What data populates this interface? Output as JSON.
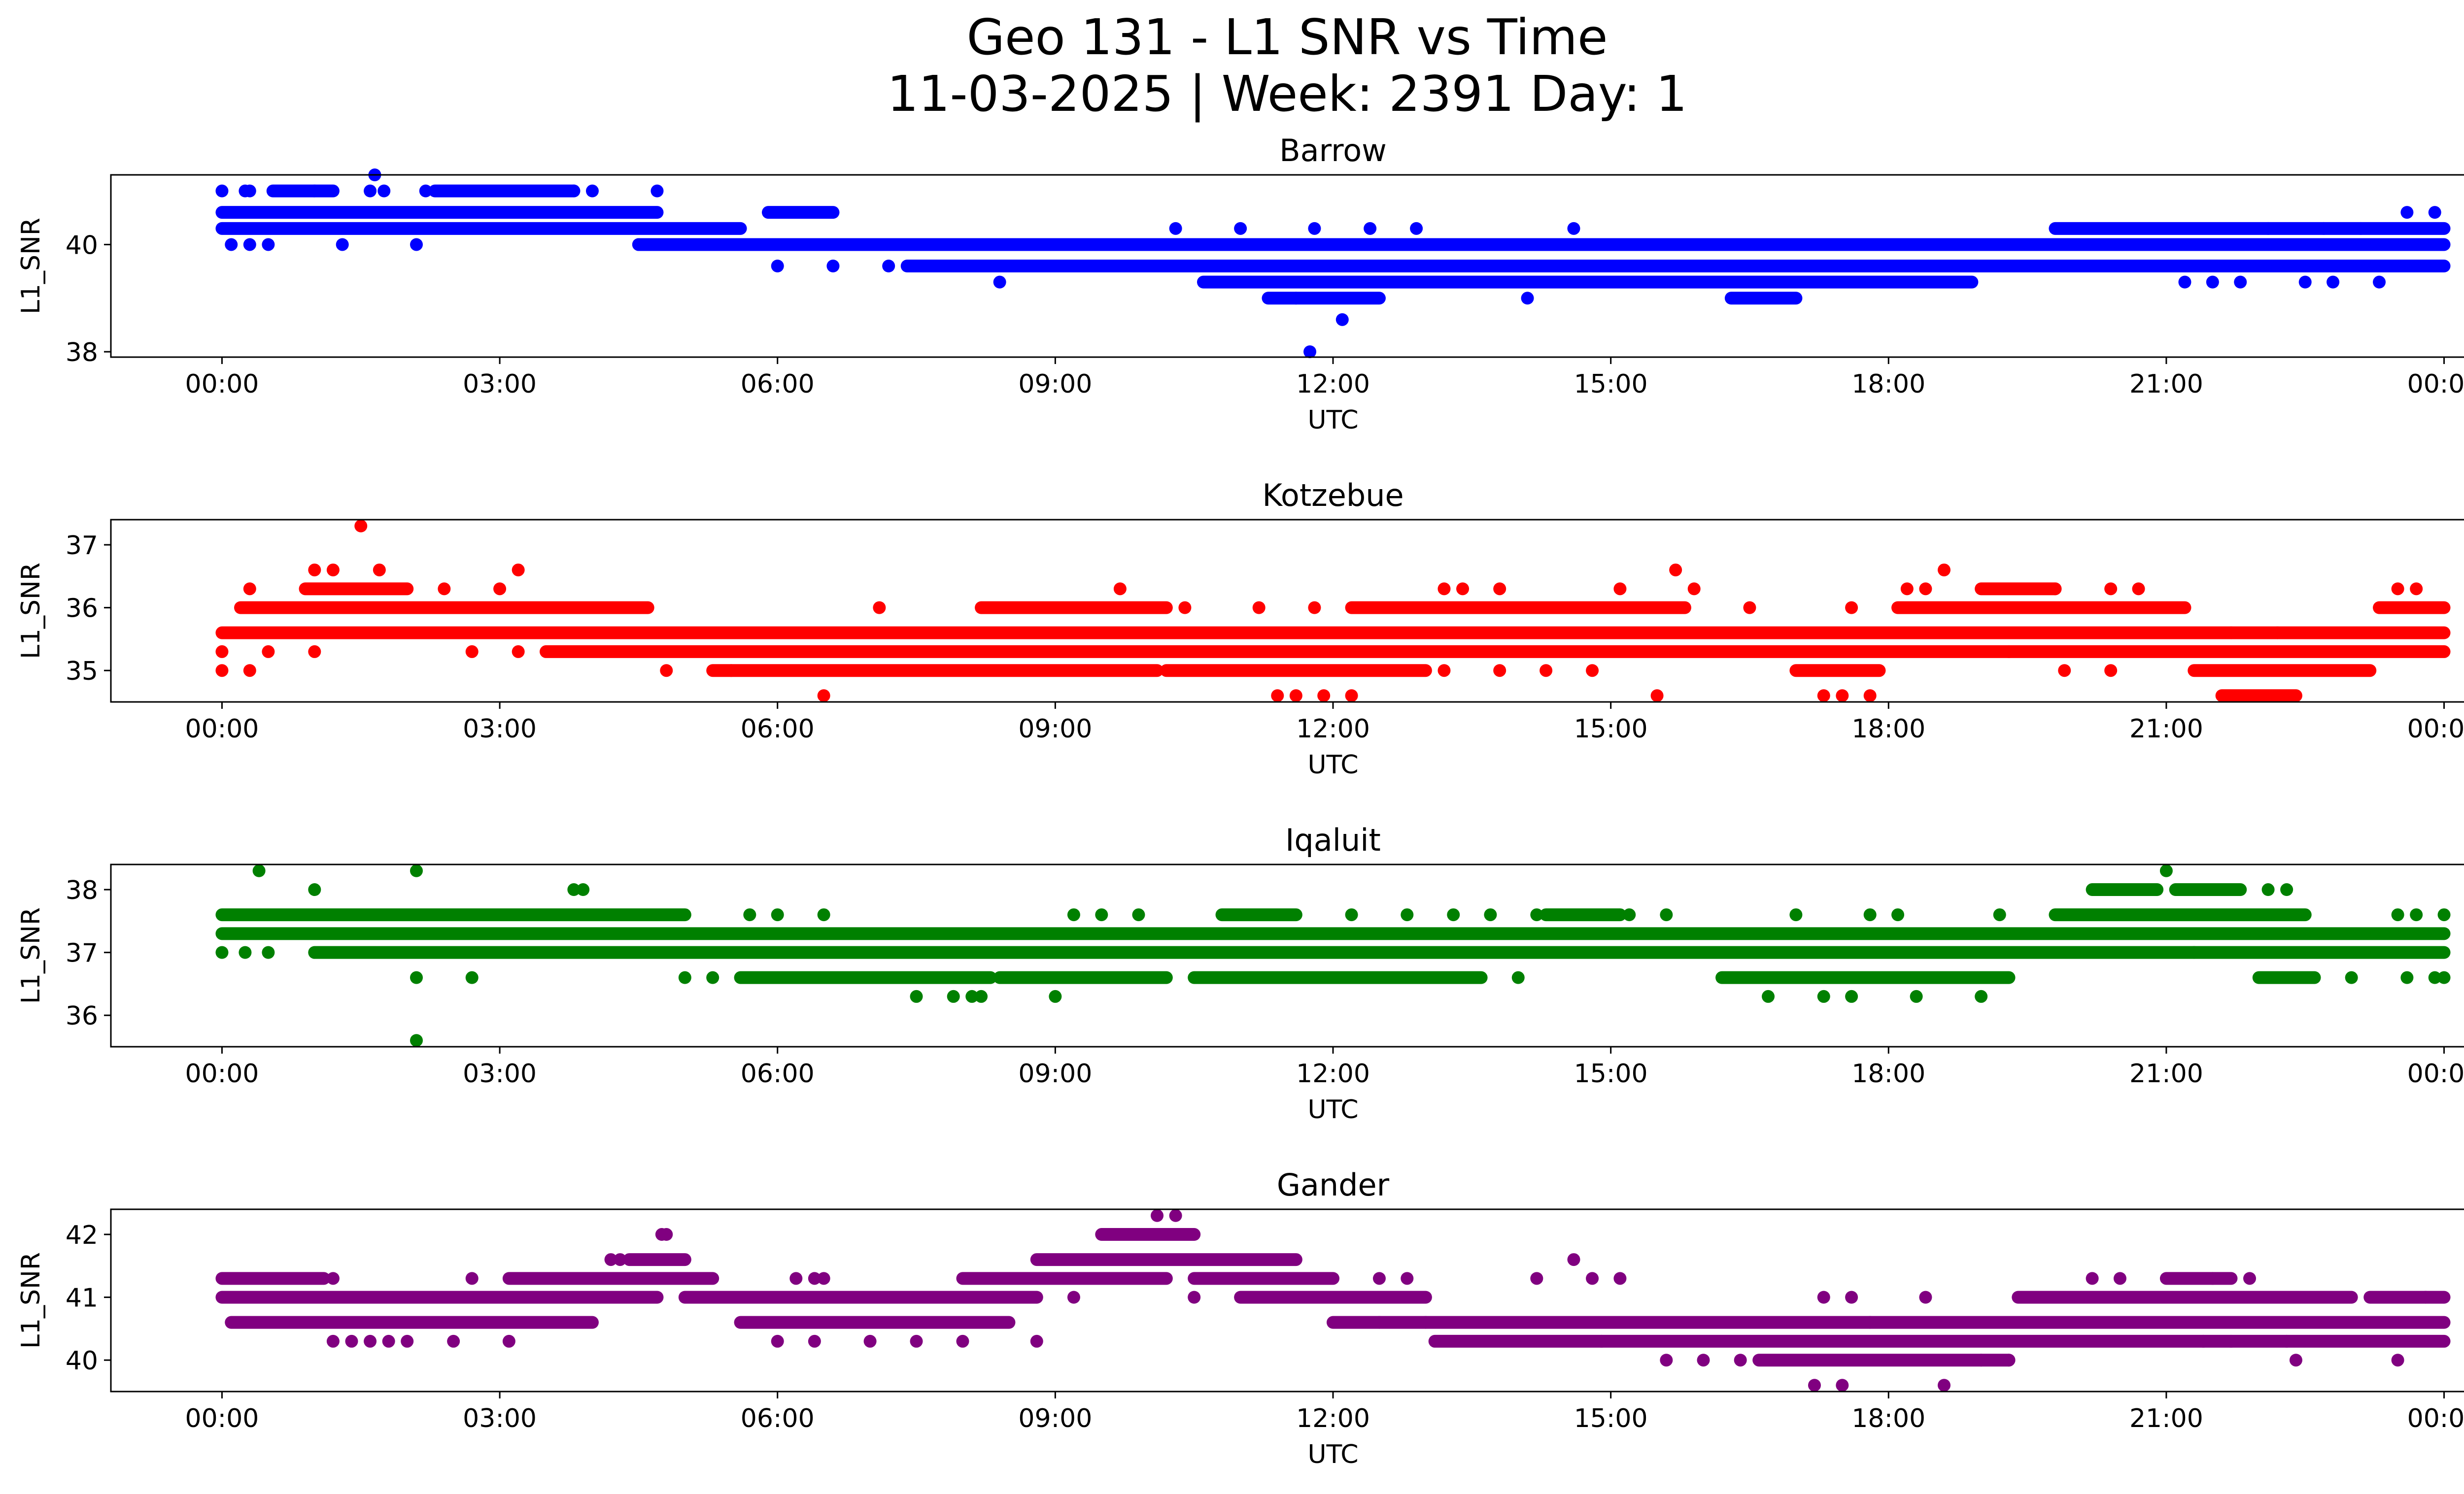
{
  "figure": {
    "title_line1": "Geo 131 - L1 SNR vs Time",
    "title_line2": "11-03-2025 | Week: 2391 Day: 1"
  },
  "chart_data": [
    {
      "type": "scatter",
      "title": "Barrow",
      "xlabel": "UTC",
      "ylabel": "L1_SNR",
      "color": "#0000ff",
      "xlim_hours": [
        -1.2,
        25.2
      ],
      "ylim": [
        37.9,
        41.3
      ],
      "xticks": [
        0,
        3,
        6,
        9,
        12,
        15,
        18,
        21,
        24
      ],
      "xtick_labels": [
        "00:00",
        "03:00",
        "06:00",
        "09:00",
        "12:00",
        "15:00",
        "18:00",
        "21:00",
        "00:00"
      ],
      "yticks": [
        38,
        40
      ],
      "ytick_labels": [
        "38",
        "40"
      ],
      "bands": [
        {
          "y": 40.6,
          "from": 0.0,
          "to": 4.7
        },
        {
          "y": 40.3,
          "from": 0.0,
          "to": 5.6
        },
        {
          "y": 40.0,
          "from": 4.5,
          "to": 24.0
        },
        {
          "y": 39.6,
          "from": 7.4,
          "to": 24.0
        },
        {
          "y": 39.3,
          "from": 10.6,
          "to": 18.9
        },
        {
          "y": 41.0,
          "from": 0.55,
          "to": 1.2
        },
        {
          "y": 41.0,
          "from": 2.3,
          "to": 3.8
        },
        {
          "y": 40.6,
          "from": 5.9,
          "to": 6.6
        },
        {
          "y": 40.3,
          "from": 19.8,
          "to": 24.0
        },
        {
          "y": 39.0,
          "from": 11.3,
          "to": 12.5
        },
        {
          "y": 39.0,
          "from": 16.3,
          "to": 17.0
        }
      ],
      "points": [
        [
          0.0,
          41.0
        ],
        [
          0.25,
          41.0
        ],
        [
          0.3,
          41.0
        ],
        [
          1.0,
          41.0
        ],
        [
          1.6,
          41.0
        ],
        [
          1.65,
          41.3
        ],
        [
          1.75,
          41.0
        ],
        [
          2.2,
          41.0
        ],
        [
          3.8,
          41.0
        ],
        [
          4.0,
          41.0
        ],
        [
          4.7,
          41.0
        ],
        [
          0.1,
          40.0
        ],
        [
          0.3,
          40.0
        ],
        [
          0.5,
          40.0
        ],
        [
          1.3,
          40.0
        ],
        [
          2.1,
          40.0
        ],
        [
          4.5,
          40.0
        ],
        [
          6.0,
          39.6
        ],
        [
          6.6,
          39.6
        ],
        [
          7.2,
          39.6
        ],
        [
          8.4,
          39.3
        ],
        [
          10.3,
          40.3
        ],
        [
          11.0,
          40.3
        ],
        [
          11.8,
          40.3
        ],
        [
          12.4,
          40.3
        ],
        [
          12.9,
          40.3
        ],
        [
          14.6,
          40.3
        ],
        [
          11.6,
          39.0
        ],
        [
          12.1,
          38.6
        ],
        [
          11.75,
          38.0
        ],
        [
          14.1,
          39.0
        ],
        [
          21.2,
          39.3
        ],
        [
          21.5,
          39.3
        ],
        [
          21.8,
          39.3
        ],
        [
          22.5,
          39.3
        ],
        [
          22.8,
          39.3
        ],
        [
          23.3,
          39.3
        ],
        [
          22.1,
          40.3
        ],
        [
          22.7,
          40.3
        ],
        [
          23.6,
          40.6
        ],
        [
          23.9,
          40.6
        ],
        [
          23.1,
          40.3
        ]
      ]
    },
    {
      "type": "scatter",
      "title": "Kotzebue",
      "xlabel": "UTC",
      "ylabel": "L1_SNR",
      "color": "#ff0000",
      "xlim_hours": [
        -1.2,
        25.2
      ],
      "ylim": [
        34.5,
        37.4
      ],
      "xticks": [
        0,
        3,
        6,
        9,
        12,
        15,
        18,
        21,
        24
      ],
      "xtick_labels": [
        "00:00",
        "03:00",
        "06:00",
        "09:00",
        "12:00",
        "15:00",
        "18:00",
        "21:00",
        "00:00"
      ],
      "yticks": [
        35,
        36,
        37
      ],
      "ytick_labels": [
        "35",
        "36",
        "37"
      ],
      "bands": [
        {
          "y": 35.6,
          "from": 0.0,
          "to": 24.0
        },
        {
          "y": 35.3,
          "from": 3.5,
          "to": 24.0
        },
        {
          "y": 36.0,
          "from": 0.2,
          "to": 4.6
        },
        {
          "y": 36.3,
          "from": 0.9,
          "to": 2.0
        },
        {
          "y": 35.0,
          "from": 5.3,
          "to": 10.1
        },
        {
          "y": 35.0,
          "from": 10.2,
          "to": 13.0
        },
        {
          "y": 36.0,
          "from": 8.2,
          "to": 10.2
        },
        {
          "y": 36.0,
          "from": 12.2,
          "to": 15.8
        },
        {
          "y": 36.0,
          "from": 18.1,
          "to": 21.2
        },
        {
          "y": 35.0,
          "from": 17.0,
          "to": 17.9
        },
        {
          "y": 34.6,
          "from": 21.6,
          "to": 22.4
        },
        {
          "y": 35.0,
          "from": 21.3,
          "to": 23.2
        },
        {
          "y": 36.0,
          "from": 23.3,
          "to": 24.0
        },
        {
          "y": 36.3,
          "from": 19.0,
          "to": 19.8
        }
      ],
      "points": [
        [
          0.0,
          35.3
        ],
        [
          0.0,
          35.0
        ],
        [
          0.3,
          35.0
        ],
        [
          0.5,
          35.3
        ],
        [
          1.0,
          35.3
        ],
        [
          0.3,
          36.3
        ],
        [
          1.0,
          36.6
        ],
        [
          1.2,
          36.6
        ],
        [
          1.5,
          37.3
        ],
        [
          1.7,
          36.6
        ],
        [
          3.2,
          36.6
        ],
        [
          2.4,
          36.3
        ],
        [
          3.0,
          36.3
        ],
        [
          2.7,
          35.3
        ],
        [
          3.2,
          35.3
        ],
        [
          4.8,
          35.0
        ],
        [
          5.5,
          35.0
        ],
        [
          6.5,
          34.6
        ],
        [
          7.1,
          36.0
        ],
        [
          9.7,
          36.3
        ],
        [
          10.4,
          36.0
        ],
        [
          11.2,
          36.0
        ],
        [
          11.6,
          34.6
        ],
        [
          11.9,
          34.6
        ],
        [
          12.2,
          34.6
        ],
        [
          11.4,
          34.6
        ],
        [
          11.8,
          36.0
        ],
        [
          13.2,
          36.3
        ],
        [
          13.4,
          36.3
        ],
        [
          13.8,
          36.3
        ],
        [
          13.2,
          35.0
        ],
        [
          13.8,
          35.0
        ],
        [
          14.3,
          35.0
        ],
        [
          14.8,
          35.0
        ],
        [
          15.1,
          36.3
        ],
        [
          15.5,
          34.6
        ],
        [
          15.7,
          36.6
        ],
        [
          15.9,
          36.3
        ],
        [
          16.5,
          36.0
        ],
        [
          17.3,
          34.6
        ],
        [
          17.5,
          34.6
        ],
        [
          17.8,
          34.6
        ],
        [
          17.6,
          36.0
        ],
        [
          18.2,
          36.3
        ],
        [
          18.6,
          36.6
        ],
        [
          18.4,
          36.3
        ],
        [
          19.3,
          35.3
        ],
        [
          19.9,
          35.0
        ],
        [
          20.4,
          35.0
        ],
        [
          19.8,
          36.3
        ],
        [
          20.4,
          36.3
        ],
        [
          20.7,
          36.3
        ],
        [
          21.7,
          35.6
        ],
        [
          22.2,
          35.6
        ],
        [
          23.5,
          36.3
        ],
        [
          23.7,
          36.3
        ]
      ]
    },
    {
      "type": "scatter",
      "title": "Iqaluit",
      "xlabel": "UTC",
      "ylabel": "L1_SNR",
      "color": "#008000",
      "xlim_hours": [
        -1.2,
        25.2
      ],
      "ylim": [
        35.5,
        38.4
      ],
      "xticks": [
        0,
        3,
        6,
        9,
        12,
        15,
        18,
        21,
        24
      ],
      "xtick_labels": [
        "00:00",
        "03:00",
        "06:00",
        "09:00",
        "12:00",
        "15:00",
        "18:00",
        "21:00",
        "00:00"
      ],
      "yticks": [
        36,
        37,
        38
      ],
      "ytick_labels": [
        "36",
        "37",
        "38"
      ],
      "bands": [
        {
          "y": 37.3,
          "from": 0.0,
          "to": 24.0
        },
        {
          "y": 37.6,
          "from": 0.0,
          "to": 5.0
        },
        {
          "y": 37.0,
          "from": 1.0,
          "to": 24.0
        },
        {
          "y": 36.6,
          "from": 5.6,
          "to": 8.3
        },
        {
          "y": 36.6,
          "from": 8.4,
          "to": 10.2
        },
        {
          "y": 36.6,
          "from": 10.5,
          "to": 13.6
        },
        {
          "y": 36.6,
          "from": 16.2,
          "to": 19.3
        },
        {
          "y": 37.6,
          "from": 10.8,
          "to": 11.6
        },
        {
          "y": 37.6,
          "from": 14.3,
          "to": 15.1
        },
        {
          "y": 37.6,
          "from": 19.8,
          "to": 22.5
        },
        {
          "y": 38.0,
          "from": 20.2,
          "to": 20.9
        },
        {
          "y": 38.0,
          "from": 21.1,
          "to": 21.8
        },
        {
          "y": 36.6,
          "from": 22.0,
          "to": 22.6
        }
      ],
      "points": [
        [
          0.0,
          37.0
        ],
        [
          0.25,
          37.0
        ],
        [
          0.5,
          37.0
        ],
        [
          0.4,
          38.3
        ],
        [
          1.0,
          38.0
        ],
        [
          2.1,
          38.3
        ],
        [
          2.1,
          36.6
        ],
        [
          2.1,
          35.6
        ],
        [
          2.7,
          36.6
        ],
        [
          3.8,
          38.0
        ],
        [
          3.9,
          38.0
        ],
        [
          5.0,
          36.6
        ],
        [
          5.3,
          36.6
        ],
        [
          5.7,
          37.6
        ],
        [
          6.0,
          37.6
        ],
        [
          6.5,
          37.6
        ],
        [
          7.5,
          36.3
        ],
        [
          7.9,
          36.3
        ],
        [
          8.1,
          36.3
        ],
        [
          8.2,
          36.3
        ],
        [
          9.0,
          36.3
        ],
        [
          9.2,
          37.6
        ],
        [
          9.5,
          37.6
        ],
        [
          9.9,
          37.6
        ],
        [
          12.2,
          37.6
        ],
        [
          12.8,
          37.6
        ],
        [
          13.3,
          37.6
        ],
        [
          13.7,
          37.6
        ],
        [
          14.2,
          37.6
        ],
        [
          14.0,
          36.6
        ],
        [
          15.2,
          37.6
        ],
        [
          15.6,
          37.6
        ],
        [
          16.7,
          36.3
        ],
        [
          17.0,
          37.6
        ],
        [
          17.3,
          36.3
        ],
        [
          17.6,
          36.3
        ],
        [
          17.8,
          37.6
        ],
        [
          18.1,
          37.6
        ],
        [
          18.3,
          36.3
        ],
        [
          19.0,
          36.3
        ],
        [
          19.2,
          37.6
        ],
        [
          21.0,
          38.3
        ],
        [
          21.5,
          38.0
        ],
        [
          22.1,
          38.0
        ],
        [
          22.3,
          38.0
        ],
        [
          23.5,
          37.6
        ],
        [
          23.7,
          37.6
        ],
        [
          24.0,
          37.6
        ],
        [
          23.6,
          36.6
        ],
        [
          23.9,
          36.6
        ],
        [
          24.0,
          36.6
        ],
        [
          21.3,
          37.0
        ],
        [
          23.0,
          36.6
        ]
      ]
    },
    {
      "type": "scatter",
      "title": "Gander",
      "xlabel": "UTC",
      "ylabel": "L1_SNR",
      "color": "#800080",
      "xlim_hours": [
        -1.2,
        25.2
      ],
      "ylim": [
        39.5,
        42.4
      ],
      "xticks": [
        0,
        3,
        6,
        9,
        12,
        15,
        18,
        21,
        24
      ],
      "xtick_labels": [
        "00:00",
        "03:00",
        "06:00",
        "09:00",
        "12:00",
        "15:00",
        "18:00",
        "21:00",
        "00:00"
      ],
      "yticks": [
        40,
        41,
        42
      ],
      "ytick_labels": [
        "40",
        "41",
        "42"
      ],
      "bands": [
        {
          "y": 41.0,
          "from": 0.0,
          "to": 4.7
        },
        {
          "y": 40.6,
          "from": 0.1,
          "to": 4.0
        },
        {
          "y": 41.3,
          "from": 0.0,
          "to": 1.1
        },
        {
          "y": 41.3,
          "from": 3.1,
          "to": 5.3
        },
        {
          "y": 41.6,
          "from": 4.4,
          "to": 5.0
        },
        {
          "y": 41.0,
          "from": 5.0,
          "to": 8.8
        },
        {
          "y": 40.6,
          "from": 5.6,
          "to": 8.5
        },
        {
          "y": 41.3,
          "from": 8.0,
          "to": 10.2
        },
        {
          "y": 41.6,
          "from": 8.8,
          "to": 11.6
        },
        {
          "y": 42.0,
          "from": 9.5,
          "to": 10.5
        },
        {
          "y": 41.3,
          "from": 10.5,
          "to": 12.0
        },
        {
          "y": 41.0,
          "from": 11.0,
          "to": 13.0
        },
        {
          "y": 40.6,
          "from": 12.0,
          "to": 24.0
        },
        {
          "y": 40.3,
          "from": 13.1,
          "to": 24.0
        },
        {
          "y": 41.0,
          "from": 19.4,
          "to": 23.0
        },
        {
          "y": 40.0,
          "from": 16.6,
          "to": 19.3
        },
        {
          "y": 41.3,
          "from": 21.0,
          "to": 21.7
        },
        {
          "y": 41.0,
          "from": 23.2,
          "to": 24.0
        }
      ],
      "points": [
        [
          1.2,
          41.3
        ],
        [
          1.2,
          40.3
        ],
        [
          1.4,
          40.3
        ],
        [
          1.6,
          40.3
        ],
        [
          1.8,
          40.3
        ],
        [
          2.0,
          40.3
        ],
        [
          2.5,
          40.3
        ],
        [
          2.7,
          41.3
        ],
        [
          3.1,
          40.3
        ],
        [
          4.2,
          41.6
        ],
        [
          4.3,
          41.6
        ],
        [
          4.75,
          42.0
        ],
        [
          4.8,
          42.0
        ],
        [
          6.2,
          41.3
        ],
        [
          6.4,
          41.3
        ],
        [
          6.5,
          41.3
        ],
        [
          6.0,
          40.3
        ],
        [
          6.4,
          40.3
        ],
        [
          7.0,
          40.3
        ],
        [
          7.5,
          40.3
        ],
        [
          8.0,
          40.3
        ],
        [
          8.8,
          40.3
        ],
        [
          9.2,
          41.0
        ],
        [
          10.1,
          42.3
        ],
        [
          10.3,
          42.3
        ],
        [
          10.5,
          41.0
        ],
        [
          12.5,
          41.3
        ],
        [
          12.8,
          41.3
        ],
        [
          12.5,
          40.6
        ],
        [
          13.0,
          40.6
        ],
        [
          14.2,
          41.3
        ],
        [
          14.6,
          41.6
        ],
        [
          14.8,
          41.3
        ],
        [
          15.1,
          41.3
        ],
        [
          14.9,
          40.3
        ],
        [
          15.6,
          40.0
        ],
        [
          16.0,
          40.0
        ],
        [
          16.4,
          40.0
        ],
        [
          17.2,
          39.6
        ],
        [
          17.5,
          39.6
        ],
        [
          17.3,
          41.0
        ],
        [
          17.6,
          41.0
        ],
        [
          17.8,
          40.6
        ],
        [
          18.4,
          41.0
        ],
        [
          18.6,
          39.6
        ],
        [
          19.0,
          40.0
        ],
        [
          19.3,
          40.0
        ],
        [
          20.2,
          41.3
        ],
        [
          20.5,
          41.3
        ],
        [
          21.5,
          41.3
        ],
        [
          21.9,
          41.3
        ],
        [
          21.4,
          40.3
        ],
        [
          21.7,
          40.3
        ],
        [
          22.3,
          40.3
        ],
        [
          22.4,
          40.0
        ],
        [
          23.5,
          40.0
        ],
        [
          23.8,
          41.0
        ]
      ]
    }
  ]
}
